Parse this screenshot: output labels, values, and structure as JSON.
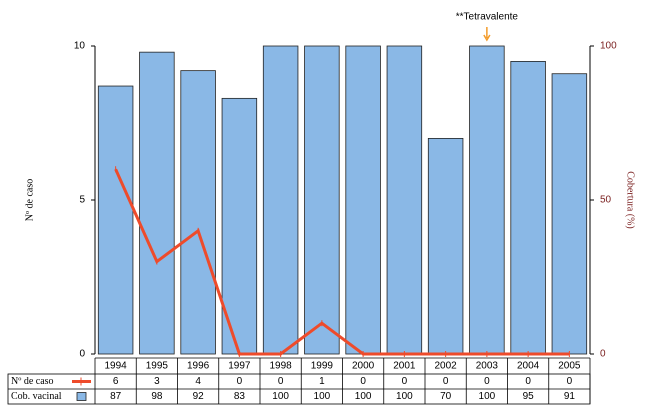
{
  "chart_data": {
    "type": "combo",
    "annotation": "**Tetravalente",
    "y_label": "Nº de caso",
    "y2_label": "Cobertura (%)",
    "categories": [
      "1994",
      "1995",
      "1996",
      "1997",
      "1998",
      "1999",
      "2000",
      "2001",
      "2002",
      "2003",
      "2004",
      "2005"
    ],
    "ylim": [
      0,
      10
    ],
    "yticks": [
      0,
      5,
      10
    ],
    "y2lim": [
      0,
      100
    ],
    "y2ticks": [
      0,
      50,
      100
    ],
    "series": [
      {
        "name": "Nº de caso",
        "type": "line",
        "color": "#ee4b2b",
        "values": [
          6,
          3,
          4,
          0,
          0,
          1,
          0,
          0,
          0,
          0,
          0,
          0
        ]
      },
      {
        "name": "Cob. vacinal",
        "type": "bar",
        "axis": "y2",
        "color": "#8ab8e6",
        "values": [
          87,
          98,
          92,
          83,
          100,
          100,
          100,
          100,
          70,
          100,
          95,
          91
        ]
      }
    ]
  }
}
